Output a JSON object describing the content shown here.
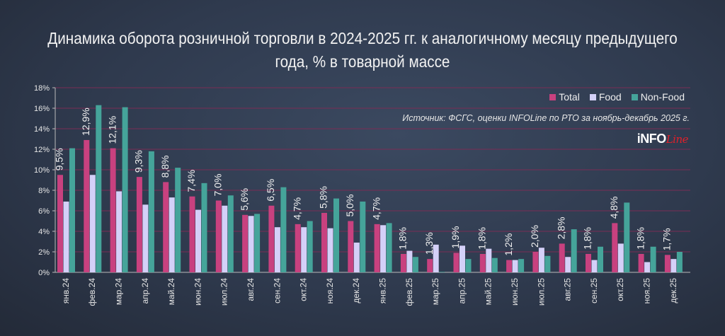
{
  "chart_data": {
    "type": "bar",
    "title": "Динамика оборота розничной торговли в 2024-2025 гг. к аналогичному месяцу предыдущего года, % в товарной массе",
    "source": "Источник: ФСГС, оценки INFOLine по РТО за ноябрь-декабрь 2025 г.",
    "logo": "INFOLine",
    "categories": [
      "янв.24",
      "фев.24",
      "мар.24",
      "апр.24",
      "май.24",
      "июн.24",
      "июл.24",
      "авг.24",
      "сен.24",
      "окт.24",
      "ноя.24",
      "дек.24",
      "янв.25",
      "фев.25",
      "мар.25",
      "апр.25",
      "май.25",
      "июн.25",
      "июл.25",
      "авг.25",
      "сен.25",
      "окт.25",
      "ноя.25",
      "дек.25"
    ],
    "series": [
      {
        "name": "Total",
        "color": "#c8417f",
        "values": [
          9.5,
          12.9,
          12.1,
          9.3,
          8.8,
          7.4,
          7.0,
          5.6,
          6.5,
          4.7,
          5.8,
          5.0,
          4.7,
          1.8,
          1.3,
          1.9,
          1.8,
          1.2,
          2.0,
          2.8,
          1.8,
          4.8,
          1.8,
          1.7
        ],
        "labels": [
          "9,5%",
          "12,9%",
          "12,1%",
          "9,3%",
          "8,8%",
          "7,4%",
          "7,0%",
          "5,6%",
          "6,5%",
          "4,7%",
          "5,8%",
          "5,0%",
          "4,7%",
          "1,8%",
          "1,3%",
          "1,9%",
          "1,8%",
          "1,2%",
          "2,0%",
          "2,8%",
          "1,8%",
          "4,8%",
          "1,8%",
          "1,7%"
        ]
      },
      {
        "name": "Food",
        "color": "#d4d0f8",
        "values": [
          6.9,
          9.5,
          7.9,
          6.6,
          7.3,
          6.1,
          6.5,
          5.5,
          4.4,
          4.4,
          4.3,
          2.9,
          4.6,
          2.1,
          2.7,
          2.6,
          2.3,
          1.2,
          2.4,
          1.5,
          1.2,
          2.8,
          1.0,
          1.3
        ]
      },
      {
        "name": "Non-Food",
        "color": "#45a49a",
        "values": [
          12.1,
          16.3,
          16.1,
          11.8,
          10.2,
          8.7,
          7.5,
          5.7,
          8.3,
          5.0,
          7.2,
          6.9,
          4.8,
          1.5,
          0.05,
          1.3,
          1.4,
          1.3,
          1.6,
          4.2,
          2.5,
          6.8,
          2.5,
          2.0
        ]
      }
    ],
    "yticks": [
      "0%",
      "2%",
      "4%",
      "6%",
      "8%",
      "10%",
      "12%",
      "14%",
      "16%",
      "18%"
    ],
    "ylim": [
      0,
      18
    ],
    "grid": true,
    "gridColor": "#7a2d55",
    "legend": "top-right"
  }
}
